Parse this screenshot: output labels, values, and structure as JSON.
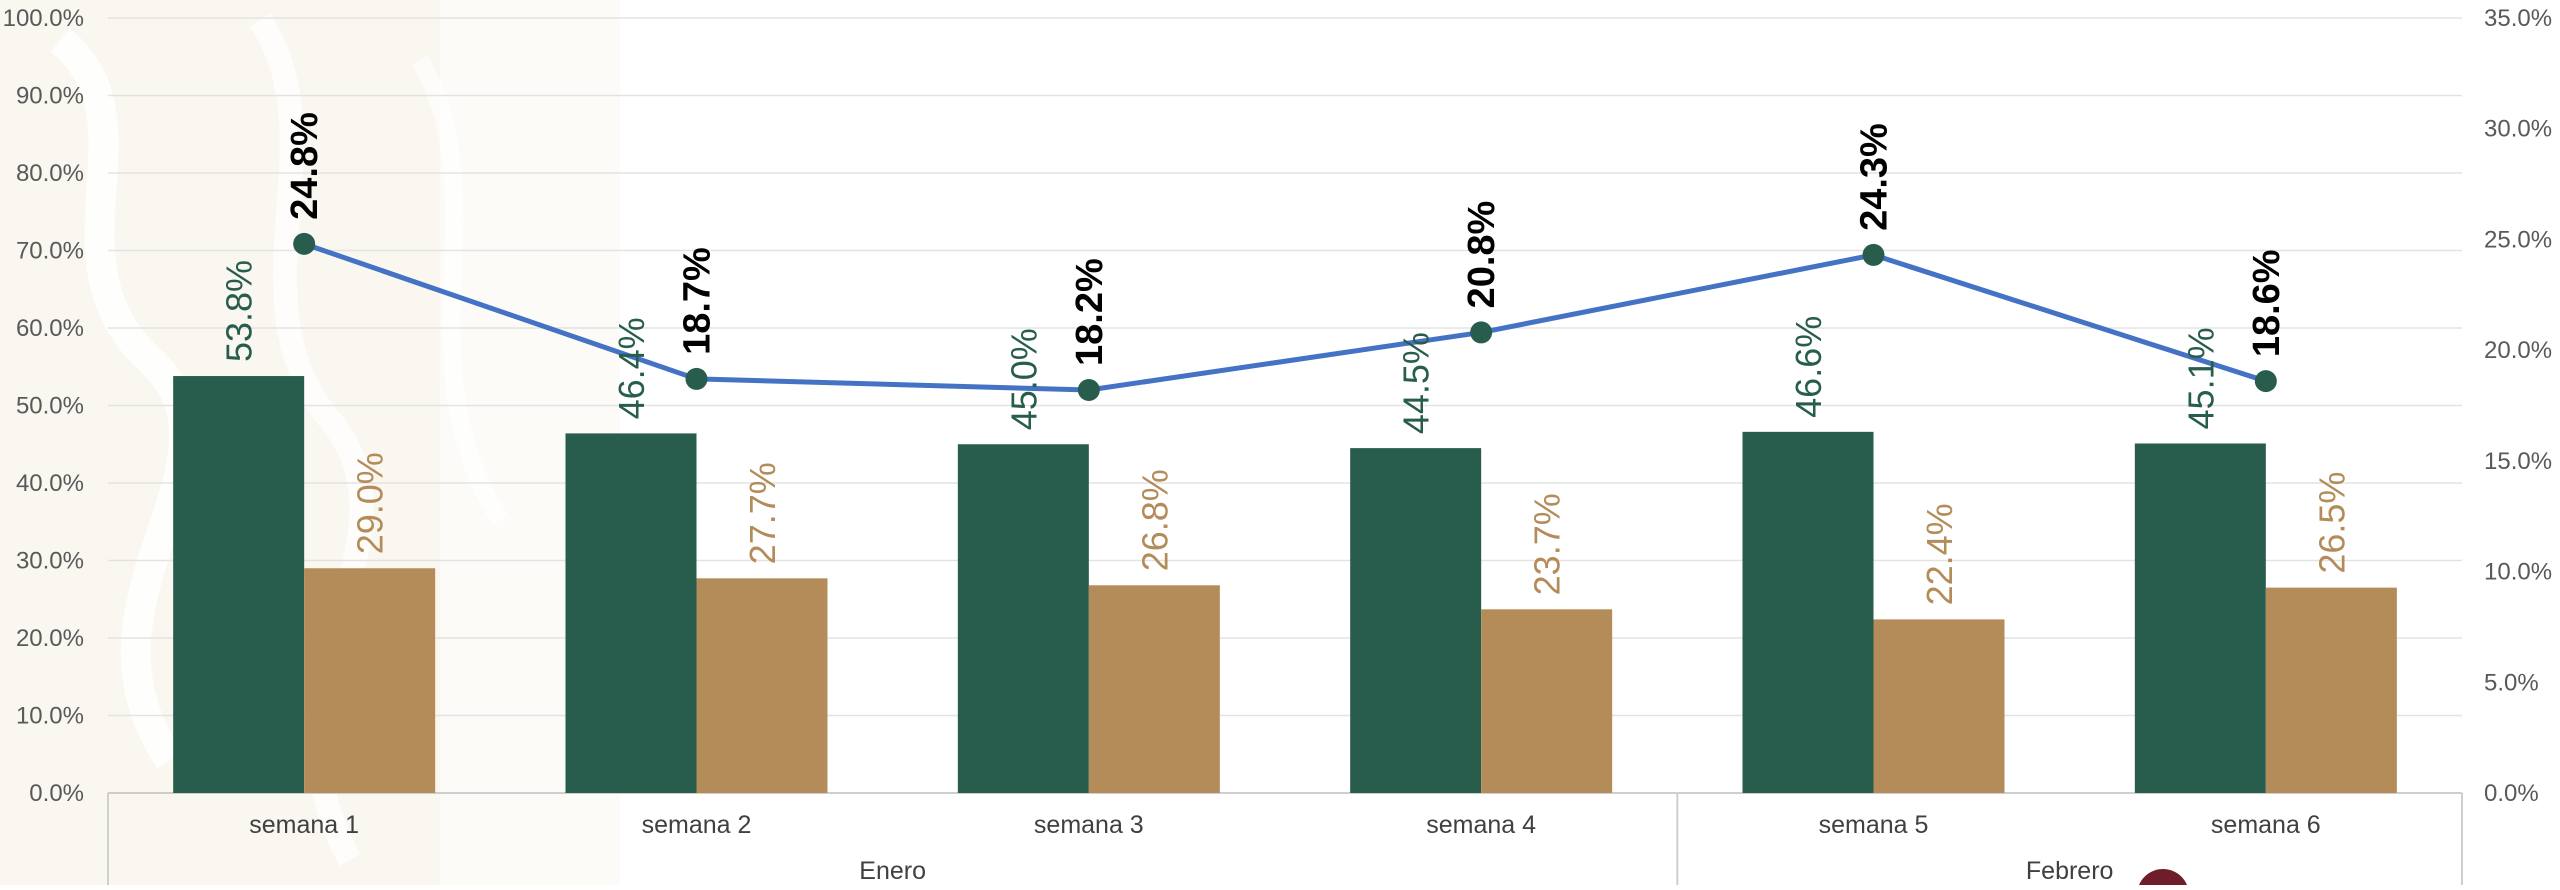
{
  "chart_data": {
    "type": "bar",
    "groups": [
      {
        "label": "Enero",
        "categories": [
          "semana  1",
          "semana 2",
          "semana 3",
          "semana  4"
        ]
      },
      {
        "label": "Febrero",
        "categories": [
          "semana  5",
          "semana  6"
        ]
      }
    ],
    "categories": [
      "semana  1",
      "semana 2",
      "semana 3",
      "semana  4",
      "semana  5",
      "semana  6"
    ],
    "series": [
      {
        "type": "bar",
        "axis": "left",
        "color": "#285d4d",
        "values": [
          53.8,
          46.4,
          45.0,
          44.5,
          46.6,
          45.1
        ],
        "labels": [
          "53.8%",
          "46.4%",
          "45.0%",
          "44.5%",
          "46.6%",
          "45.1%"
        ]
      },
      {
        "type": "bar",
        "axis": "left",
        "color": "#b48c5a",
        "values": [
          29.0,
          27.7,
          26.8,
          23.7,
          22.4,
          26.5
        ],
        "labels": [
          "29.0%",
          "27.7%",
          "26.8%",
          "23.7%",
          "22.4%",
          "26.5%"
        ]
      },
      {
        "type": "line",
        "axis": "right",
        "color": "#4472c4",
        "marker_color": "#285d4d",
        "values": [
          24.8,
          18.7,
          18.2,
          20.8,
          24.3,
          18.6
        ],
        "labels": [
          "24.8%",
          "18.7%",
          "18.2%",
          "20.8%",
          "24.3%",
          "18.6%"
        ]
      }
    ],
    "left_axis": {
      "ylim": [
        0,
        100
      ],
      "ticks": [
        0,
        10,
        20,
        30,
        40,
        50,
        60,
        70,
        80,
        90,
        100
      ],
      "tick_labels": [
        "0.0%",
        "10.0%",
        "20.0%",
        "30.0%",
        "40.0%",
        "50.0%",
        "60.0%",
        "70.0%",
        "80.0%",
        "90.0%",
        "100.0%"
      ]
    },
    "right_axis": {
      "ylim": [
        0,
        35
      ],
      "ticks": [
        0,
        5,
        10,
        15,
        20,
        25,
        30,
        35
      ],
      "tick_labels": [
        "0.0%",
        "5.0%",
        "10.0%",
        "15.0%",
        "20.0%",
        "25.0%",
        "30.0%",
        "35.0%"
      ]
    },
    "grid": true,
    "legend": "none",
    "title": "",
    "xlabel": "",
    "ylabel": ""
  }
}
